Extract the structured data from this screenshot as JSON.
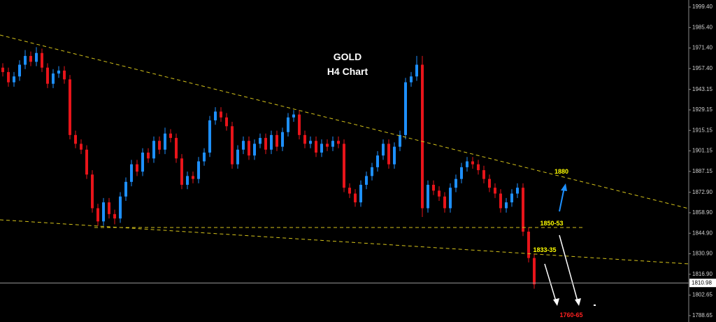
{
  "chart_data": {
    "type": "candlestick",
    "title": "GOLD",
    "subtitle": "H4 Chart",
    "up_color": "#1e90ff",
    "down_color": "#e8141a",
    "open": [
      1958,
      1955,
      1948,
      1952,
      1960,
      1966,
      1962,
      1968,
      1958,
      1947,
      1954,
      1956,
      1950,
      1912,
      1906,
      1902,
      1885,
      1862,
      1853,
      1866,
      1858,
      1855,
      1870,
      1880,
      1892,
      1887,
      1900,
      1896,
      1908,
      1902,
      1913,
      1910,
      1896,
      1878,
      1884,
      1882,
      1894,
      1900,
      1922,
      1928,
      1924,
      1918,
      1892,
      1902,
      1908,
      1898,
      1906,
      1910,
      1902,
      1912,
      1904,
      1914,
      1924,
      1926,
      1912,
      1906,
      1908,
      1900,
      1906,
      1904,
      1908,
      1906,
      1876,
      1872,
      1866,
      1878,
      1884,
      1890,
      1898,
      1906,
      1892,
      1904,
      1912,
      1948,
      1952,
      1960,
      1862,
      1878,
      1874,
      1870,
      1862,
      1876,
      1882,
      1890,
      1894,
      1892,
      1888,
      1882,
      1876,
      1872,
      1862,
      1866,
      1872,
      1876,
      1846,
      1828
    ],
    "high": [
      1961,
      1958,
      1955,
      1963,
      1970,
      1969,
      1972,
      1971,
      1961,
      1957,
      1959,
      1959,
      1953,
      1915,
      1909,
      1905,
      1888,
      1865,
      1869,
      1869,
      1861,
      1873,
      1883,
      1895,
      1895,
      1903,
      1903,
      1911,
      1911,
      1917,
      1916,
      1913,
      1899,
      1887,
      1887,
      1897,
      1903,
      1925,
      1931,
      1931,
      1927,
      1921,
      1905,
      1911,
      1911,
      1909,
      1913,
      1913,
      1915,
      1915,
      1917,
      1927,
      1929,
      1929,
      1915,
      1911,
      1911,
      1909,
      1909,
      1911,
      1911,
      1909,
      1879,
      1875,
      1881,
      1887,
      1893,
      1901,
      1909,
      1909,
      1907,
      1915,
      1951,
      1955,
      1966,
      1966,
      1881,
      1881,
      1877,
      1873,
      1879,
      1885,
      1893,
      1897,
      1897,
      1895,
      1891,
      1885,
      1879,
      1875,
      1869,
      1875,
      1879,
      1879,
      1849,
      1831
    ],
    "low": [
      1952,
      1945,
      1945,
      1949,
      1957,
      1959,
      1959,
      1955,
      1944,
      1944,
      1951,
      1947,
      1909,
      1903,
      1899,
      1882,
      1859,
      1850,
      1850,
      1855,
      1851,
      1852,
      1867,
      1877,
      1884,
      1884,
      1893,
      1893,
      1899,
      1899,
      1907,
      1893,
      1875,
      1875,
      1879,
      1879,
      1891,
      1897,
      1919,
      1921,
      1915,
      1889,
      1889,
      1899,
      1895,
      1895,
      1903,
      1899,
      1899,
      1901,
      1901,
      1911,
      1921,
      1909,
      1903,
      1903,
      1897,
      1897,
      1901,
      1901,
      1903,
      1873,
      1869,
      1863,
      1863,
      1875,
      1881,
      1887,
      1895,
      1889,
      1889,
      1901,
      1909,
      1945,
      1949,
      1856,
      1859,
      1871,
      1867,
      1859,
      1859,
      1873,
      1879,
      1887,
      1889,
      1885,
      1879,
      1873,
      1869,
      1859,
      1859,
      1863,
      1869,
      1843,
      1825,
      1807
    ],
    "close": [
      1955,
      1948,
      1952,
      1960,
      1966,
      1962,
      1968,
      1958,
      1947,
      1954,
      1956,
      1950,
      1912,
      1906,
      1902,
      1885,
      1862,
      1853,
      1866,
      1858,
      1855,
      1870,
      1880,
      1892,
      1887,
      1900,
      1896,
      1908,
      1902,
      1913,
      1910,
      1896,
      1878,
      1884,
      1882,
      1894,
      1900,
      1922,
      1928,
      1924,
      1918,
      1892,
      1902,
      1908,
      1898,
      1906,
      1910,
      1902,
      1912,
      1904,
      1914,
      1924,
      1926,
      1912,
      1906,
      1908,
      1900,
      1906,
      1904,
      1908,
      1906,
      1876,
      1872,
      1866,
      1878,
      1884,
      1890,
      1898,
      1906,
      1892,
      1904,
      1912,
      1948,
      1952,
      1960,
      1862,
      1878,
      1874,
      1870,
      1862,
      1876,
      1882,
      1890,
      1894,
      1892,
      1888,
      1882,
      1876,
      1872,
      1862,
      1866,
      1872,
      1876,
      1846,
      1828,
      1810
    ],
    "current_price": 1810.98,
    "ylim": [
      1784.3,
      2004.2
    ],
    "yticks": [
      {
        "value": 1999.4,
        "label": "1999.40"
      },
      {
        "value": 1985.4,
        "label": "1985.40"
      },
      {
        "value": 1971.4,
        "label": "1971.40"
      },
      {
        "value": 1957.4,
        "label": "1957.40"
      },
      {
        "value": 1943.15,
        "label": "1943.15"
      },
      {
        "value": 1929.15,
        "label": "1929.15"
      },
      {
        "value": 1915.15,
        "label": "1915.15"
      },
      {
        "value": 1901.15,
        "label": "1901.15"
      },
      {
        "value": 1887.15,
        "label": "1887.15"
      },
      {
        "value": 1872.9,
        "label": "1872.90"
      },
      {
        "value": 1858.9,
        "label": "1858.90"
      },
      {
        "value": 1844.9,
        "label": "1844.90"
      },
      {
        "value": 1830.9,
        "label": "1830.90"
      },
      {
        "value": 1816.9,
        "label": "1816.90"
      },
      {
        "value": 1802.65,
        "label": "1802.65"
      },
      {
        "value": 1788.65,
        "label": "1788.65"
      }
    ],
    "annotations": [
      "1880",
      "1850-53",
      "1833-35",
      "1760-65"
    ]
  }
}
